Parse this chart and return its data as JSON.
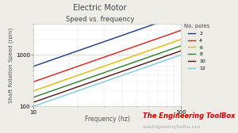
{
  "title": "Electric Motor",
  "subtitle": "Speed vs. frequency",
  "xlabel": "Frequency (hz)",
  "ylabel": "Shaft Rotation Speed (rpm)",
  "xmin": 10,
  "xmax": 100,
  "ymin": 100,
  "ymax": 4000,
  "poles": [
    2,
    4,
    6,
    8,
    10,
    12
  ],
  "colors": [
    "#1a3a7a",
    "#dd1c1c",
    "#e8b800",
    "#2e7d2e",
    "#5a0f0f",
    "#7ec8e3"
  ],
  "legend_title": "No. poles",
  "watermark": "The Engineering ToolBox",
  "watermark_url": "www.EngineeringToolBox.com",
  "background_color": "#eeede8",
  "plot_bg_color": "#ffffff",
  "title_color": "#444444",
  "watermark_color": "#cc0000",
  "watermark_url_color": "#aaaaaa",
  "grid_major_color": "#cccccc",
  "grid_minor_color": "#e4e4e4"
}
